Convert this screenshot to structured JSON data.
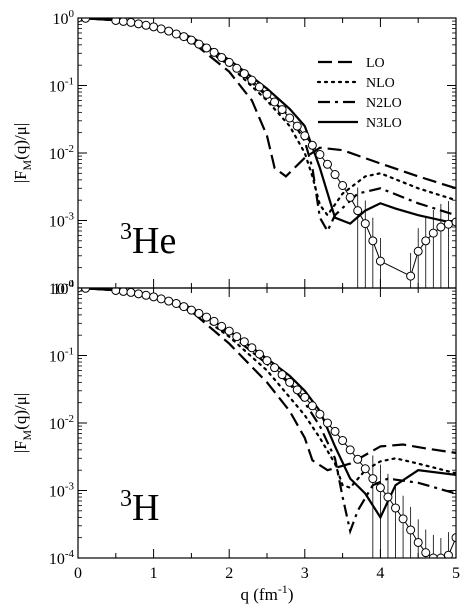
{
  "chart_data": [
    {
      "type": "line",
      "nucleus": {
        "mass": "3",
        "symbol": "He"
      },
      "ylabel": {
        "main": "|F",
        "sub": "M",
        "rest": "(q)/μ|"
      },
      "xlim": [
        0,
        5
      ],
      "ylim": [
        0.0001,
        1
      ],
      "yscale": "log",
      "grid": false,
      "legend_position": "top-right",
      "series": [
        {
          "name": "LO",
          "style": "dashed",
          "x": [
            0,
            0.5,
            1,
            1.5,
            2,
            2.3,
            2.5,
            2.6,
            2.75,
            3.0,
            3.2,
            3.5,
            4.0,
            4.5,
            5.0
          ],
          "y": [
            1,
            0.93,
            0.75,
            0.45,
            0.16,
            0.06,
            0.018,
            0.006,
            0.0045,
            0.0085,
            0.012,
            0.011,
            0.007,
            0.0045,
            0.003
          ]
        },
        {
          "name": "NLO",
          "style": "dotted",
          "x": [
            0,
            0.5,
            1,
            1.5,
            2,
            2.5,
            2.8,
            3.0,
            3.1,
            3.2,
            3.3,
            3.5,
            3.8,
            4.0,
            4.5,
            5.0
          ],
          "y": [
            1,
            0.93,
            0.76,
            0.48,
            0.2,
            0.06,
            0.025,
            0.01,
            0.0045,
            0.0017,
            0.0012,
            0.0025,
            0.0045,
            0.005,
            0.003,
            0.002
          ]
        },
        {
          "name": "N2LO",
          "style": "dashdot",
          "x": [
            0,
            0.5,
            1,
            1.5,
            2,
            2.5,
            2.8,
            3.0,
            3.1,
            3.2,
            3.3,
            3.4,
            3.7,
            4.0,
            4.5,
            5.0
          ],
          "y": [
            1,
            0.93,
            0.77,
            0.5,
            0.22,
            0.07,
            0.035,
            0.015,
            0.006,
            0.0011,
            0.0007,
            0.0012,
            0.0025,
            0.003,
            0.0018,
            0.0012
          ]
        },
        {
          "name": "N3LO",
          "style": "solid",
          "x": [
            0,
            0.5,
            1,
            1.5,
            2,
            2.5,
            2.8,
            3.0,
            3.2,
            3.4,
            3.6,
            3.8,
            4.0,
            4.2,
            4.5,
            5.0
          ],
          "y": [
            1,
            0.93,
            0.77,
            0.52,
            0.24,
            0.09,
            0.045,
            0.025,
            0.006,
            0.0011,
            0.0009,
            0.0014,
            0.0018,
            0.0015,
            0.0012,
            0.0009
          ]
        }
      ],
      "data_points": {
        "x": [
          0,
          0.1,
          0.5,
          0.6,
          0.7,
          0.8,
          0.9,
          1.0,
          1.1,
          1.2,
          1.3,
          1.4,
          1.5,
          1.6,
          1.7,
          1.8,
          1.9,
          2.0,
          2.1,
          2.2,
          2.3,
          2.4,
          2.5,
          2.6,
          2.7,
          2.8,
          2.9,
          3.0,
          3.1,
          3.2,
          3.3,
          3.4,
          3.5,
          3.6,
          3.7,
          3.8,
          3.9,
          4.0,
          4.4,
          4.5,
          4.6,
          4.7,
          4.8,
          4.9,
          5.0
        ],
        "y": [
          1,
          0.99,
          0.92,
          0.89,
          0.86,
          0.82,
          0.78,
          0.74,
          0.69,
          0.64,
          0.58,
          0.53,
          0.47,
          0.41,
          0.36,
          0.31,
          0.26,
          0.22,
          0.18,
          0.15,
          0.12,
          0.095,
          0.074,
          0.057,
          0.044,
          0.033,
          0.025,
          0.018,
          0.013,
          0.0095,
          0.0068,
          0.0048,
          0.0033,
          0.0022,
          0.0014,
          0.0009,
          0.0005,
          0.00025,
          0.00015,
          0.00035,
          0.0005,
          0.00065,
          0.0008,
          0.00088,
          0.00095
        ]
      },
      "x_ticks": [
        "0",
        "1",
        "2",
        "3",
        "4",
        "5"
      ],
      "y_ticks": [
        {
          "base": "10",
          "exp": "0"
        },
        {
          "base": "10",
          "exp": "-1"
        },
        {
          "base": "10",
          "exp": "-2"
        },
        {
          "base": "10",
          "exp": "-3"
        },
        {
          "base": "10",
          "exp": "-4"
        }
      ]
    },
    {
      "type": "line",
      "nucleus": {
        "mass": "3",
        "symbol": "H"
      },
      "ylabel": {
        "main": "|F",
        "sub": "M",
        "rest": "(q)/μ|"
      },
      "xlabel": {
        "main": "q (fm",
        "sup": "-1",
        "close": ")"
      },
      "xlim": [
        0,
        5
      ],
      "ylim": [
        0.0001,
        1
      ],
      "yscale": "log",
      "grid": false,
      "series": [
        {
          "name": "LO",
          "style": "dashed",
          "x": [
            0,
            0.5,
            1,
            1.5,
            2,
            2.5,
            2.8,
            3.0,
            3.1,
            3.3,
            3.6,
            4.0,
            4.3,
            4.6,
            5.0
          ],
          "y": [
            1,
            0.93,
            0.75,
            0.45,
            0.15,
            0.04,
            0.015,
            0.006,
            0.0028,
            0.002,
            0.0025,
            0.0045,
            0.0048,
            0.0042,
            0.0036
          ]
        },
        {
          "name": "NLO",
          "style": "dotted",
          "x": [
            0,
            0.5,
            1,
            1.5,
            2,
            2.5,
            2.8,
            3.0,
            3.2,
            3.4,
            3.5,
            3.6,
            3.8,
            4.0,
            4.2,
            4.5,
            5.0
          ],
          "y": [
            1,
            0.93,
            0.76,
            0.48,
            0.19,
            0.06,
            0.024,
            0.013,
            0.006,
            0.0025,
            0.0012,
            0.0011,
            0.002,
            0.0027,
            0.003,
            0.0025,
            0.0018
          ]
        },
        {
          "name": "N2LO",
          "style": "dashdot",
          "x": [
            0,
            0.5,
            1,
            1.5,
            2,
            2.5,
            2.8,
            3.0,
            3.2,
            3.4,
            3.5,
            3.6,
            3.7,
            3.9,
            4.1,
            4.5,
            5.0
          ],
          "y": [
            1,
            0.93,
            0.77,
            0.5,
            0.21,
            0.075,
            0.038,
            0.02,
            0.009,
            0.003,
            0.0008,
            0.00025,
            0.0005,
            0.0012,
            0.0015,
            0.0013,
            0.0009
          ]
        },
        {
          "name": "N3LO",
          "style": "solid",
          "x": [
            0,
            0.5,
            1,
            1.5,
            2,
            2.5,
            2.8,
            3.0,
            3.2,
            3.4,
            3.6,
            3.8,
            4.0,
            4.2,
            4.5,
            5.0
          ],
          "y": [
            1,
            0.93,
            0.77,
            0.51,
            0.23,
            0.09,
            0.05,
            0.03,
            0.015,
            0.0045,
            0.0015,
            0.0009,
            0.0004,
            0.0012,
            0.002,
            0.0017
          ]
        }
      ],
      "data_points": {
        "x": [
          0,
          0.1,
          0.5,
          0.6,
          0.7,
          0.8,
          0.9,
          1.0,
          1.1,
          1.2,
          1.3,
          1.4,
          1.5,
          1.6,
          1.7,
          1.8,
          1.9,
          2.0,
          2.1,
          2.2,
          2.3,
          2.4,
          2.5,
          2.6,
          2.7,
          2.8,
          2.9,
          3.0,
          3.1,
          3.2,
          3.3,
          3.4,
          3.5,
          3.6,
          3.7,
          3.8,
          3.9,
          4.0,
          4.1,
          4.2,
          4.3,
          4.4,
          4.5,
          4.6,
          4.7,
          4.8,
          4.9,
          5.0
        ],
        "y": [
          1,
          0.99,
          0.92,
          0.89,
          0.86,
          0.82,
          0.78,
          0.74,
          0.69,
          0.64,
          0.59,
          0.53,
          0.47,
          0.42,
          0.37,
          0.32,
          0.27,
          0.23,
          0.19,
          0.16,
          0.13,
          0.105,
          0.084,
          0.066,
          0.052,
          0.04,
          0.031,
          0.024,
          0.018,
          0.0135,
          0.01,
          0.0075,
          0.0055,
          0.004,
          0.0029,
          0.0021,
          0.0015,
          0.0011,
          0.0008,
          0.00055,
          0.00038,
          0.00026,
          0.00017,
          0.00012,
          0.0001,
          9e-05,
          0.00011,
          0.0002
        ]
      },
      "x_ticks": [
        "0",
        "1",
        "2",
        "3",
        "4",
        "5"
      ],
      "y_ticks": [
        {
          "base": "10",
          "exp": "0"
        },
        {
          "base": "10",
          "exp": "-1"
        },
        {
          "base": "10",
          "exp": "-2"
        },
        {
          "base": "10",
          "exp": "-3"
        },
        {
          "base": "10",
          "exp": "-4"
        }
      ]
    }
  ]
}
